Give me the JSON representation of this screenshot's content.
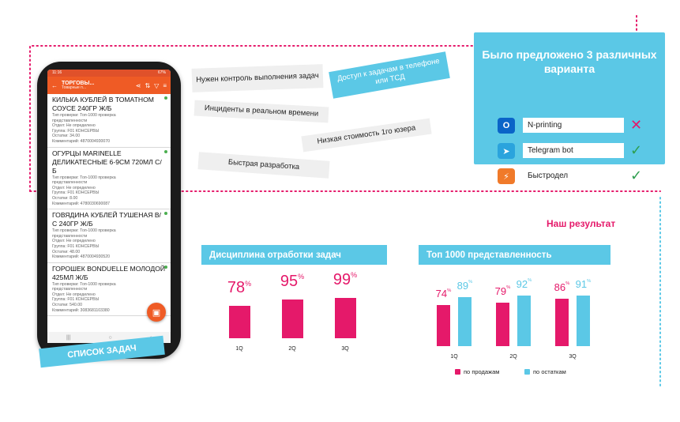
{
  "phone": {
    "status_time": "11:16",
    "status_right": "67%",
    "title": "ТОРГОВЫ...",
    "subtitle": "Товарные п...",
    "items": [
      {
        "name": "КИЛЬКА КУБЛЕЙ В ТОМАТНОМ СОУСЕ 240ГР Ж/Б",
        "meta": [
          "Тип проверки: Топ-1000 проверка",
          "представленности",
          "Отдел: Не определено",
          "Группа: F01 КОНСЕРВЫ",
          "Остатки: 34.00",
          "Комментарий: 4870004930070"
        ]
      },
      {
        "name": "ОГУРЦЫ MARINELLE ДЕЛИКАТЕСНЫЕ 6-9СМ 720МЛ С/Б",
        "meta": [
          "Тип проверки: Топ-1000 проверка",
          "представленности",
          "Отдел: Не определено",
          "Группа: F01 КОНСЕРВЫ",
          "Остатки: 8.00",
          "Комментарий: 4780030690087"
        ]
      },
      {
        "name": "ГОВЯДИНА КУБЛЕЙ ТУШЕНАЯ В/С 240ГР Ж/Б",
        "meta": [
          "Тип проверки: Топ-1000 проверка",
          "представленности",
          "Отдел: Не определено",
          "Группа: F01 КОНСЕРВЫ",
          "Остатки: 48.00",
          "Комментарий: 4870004930520"
        ]
      },
      {
        "name": "ГОРОШЕК BONDUELLE МОЛОДОЙ 425МЛ Ж/Б",
        "meta": [
          "Тип проверки: Топ-1000 проверка",
          "представленности",
          "Отдел: Не определено",
          "Группа: F01 КОНСЕРВЫ",
          "Остатки: 540.00",
          "Комментарий: 3083681103380"
        ]
      }
    ],
    "badge": "СПИСОК ЗАДАЧ"
  },
  "stickers": [
    "Нужен контроль выполнения задач",
    "Доступ к задачам в телефоне или ТСД",
    "Инциденты в реальном времени",
    "Низкая стоимость 1го юзера",
    "Быстрая разработка"
  ],
  "options": {
    "title": "Было предложено 3 различных варианта",
    "items": [
      {
        "label": "N-printing",
        "icon": "outlook-icon",
        "icon_glyph": "O",
        "icon_color": "#0a64c8",
        "mark": "✕",
        "mark_color": "#e5196a"
      },
      {
        "label": "Telegram bot",
        "icon": "telegram-icon",
        "icon_glyph": "➤",
        "icon_color": "#2aa3dd",
        "mark": "✓",
        "mark_color": "#2e9e4f"
      },
      {
        "label": "Быстродел",
        "icon": "bystrodel-icon",
        "icon_glyph": "⚡",
        "icon_color": "#f07a2a",
        "mark": "✓",
        "mark_color": "#2e9e4f"
      }
    ]
  },
  "result_title": "Наш результат",
  "chart_data": [
    {
      "type": "bar",
      "title": "Дисциплина отработки задач",
      "categories": [
        "1Q",
        "2Q",
        "3Q"
      ],
      "values": [
        78,
        95,
        99
      ],
      "value_suffix": "%",
      "colors": [
        "#e5196a"
      ]
    },
    {
      "type": "bar",
      "title": "Топ 1000 представленность",
      "categories": [
        "1Q",
        "2Q",
        "3Q"
      ],
      "series": [
        {
          "name": "по продажам",
          "values": [
            74,
            79,
            86
          ],
          "color": "#e5196a"
        },
        {
          "name": "по остаткам",
          "values": [
            89,
            92,
            91
          ],
          "color": "#5bc8e6"
        }
      ],
      "value_suffix": "%",
      "legend": "bottom"
    }
  ],
  "colors": {
    "accent_pink": "#e5196a",
    "accent_cyan": "#5bc8e6",
    "app_orange": "#ef5b25"
  }
}
